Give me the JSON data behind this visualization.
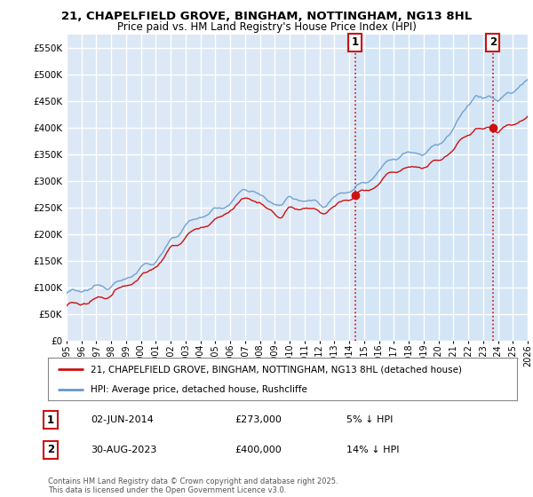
{
  "title": "21, CHAPELFIELD GROVE, BINGHAM, NOTTINGHAM, NG13 8HL",
  "subtitle": "Price paid vs. HM Land Registry's House Price Index (HPI)",
  "ylim": [
    0,
    575000
  ],
  "yticks": [
    0,
    50000,
    100000,
    150000,
    200000,
    250000,
    300000,
    350000,
    400000,
    450000,
    500000,
    550000
  ],
  "plot_bg": "#dce8f5",
  "shade_bg": "#d0e4f7",
  "grid_color": "#ffffff",
  "red_color": "#cc1111",
  "blue_color": "#6699cc",
  "legend_label_red": "21, CHAPELFIELD GROVE, BINGHAM, NOTTINGHAM, NG13 8HL (detached house)",
  "legend_label_blue": "HPI: Average price, detached house, Rushcliffe",
  "t1": 2014.42,
  "t2": 2023.66,
  "m1_val": 273000,
  "m2_val": 400000,
  "footer": "Contains HM Land Registry data © Crown copyright and database right 2025.\nThis data is licensed under the Open Government Licence v3.0.",
  "start_year": 1995,
  "end_year": 2026
}
